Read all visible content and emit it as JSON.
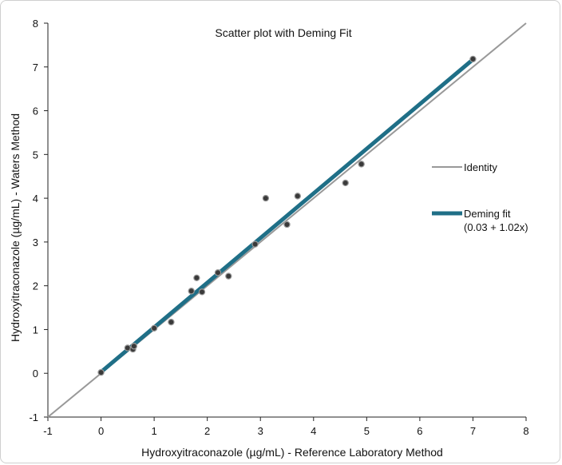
{
  "chart_data": {
    "type": "scatter",
    "title": "Scatter plot with Deming Fit",
    "xlabel": "Hydroxyitraconazole (µg/mL) - Reference Laboratory Method",
    "ylabel": "Hydroxyitraconazole (µg/mL) - Waters Method",
    "xlim": [
      -1,
      8
    ],
    "ylim": [
      -1,
      8
    ],
    "x_ticks": [
      "-1",
      "0",
      "1",
      "2",
      "3",
      "4",
      "5",
      "6",
      "7",
      "8"
    ],
    "y_ticks": [
      "-1",
      "0",
      "1",
      "2",
      "3",
      "4",
      "5",
      "6",
      "7",
      "8"
    ],
    "grid": false,
    "legend_position": "right",
    "points": [
      {
        "x": 0.0,
        "y": 0.02
      },
      {
        "x": 0.5,
        "y": 0.58
      },
      {
        "x": 0.6,
        "y": 0.55
      },
      {
        "x": 0.62,
        "y": 0.62
      },
      {
        "x": 1.0,
        "y": 1.03
      },
      {
        "x": 1.32,
        "y": 1.17
      },
      {
        "x": 1.7,
        "y": 1.88
      },
      {
        "x": 1.8,
        "y": 2.18
      },
      {
        "x": 1.9,
        "y": 1.86
      },
      {
        "x": 2.2,
        "y": 2.3
      },
      {
        "x": 2.4,
        "y": 2.22
      },
      {
        "x": 2.9,
        "y": 2.95
      },
      {
        "x": 3.1,
        "y": 4.0
      },
      {
        "x": 3.5,
        "y": 3.4
      },
      {
        "x": 3.7,
        "y": 4.05
      },
      {
        "x": 4.6,
        "y": 4.35
      },
      {
        "x": 4.9,
        "y": 4.78
      },
      {
        "x": 7.0,
        "y": 7.18
      }
    ],
    "lines": [
      {
        "name": "Identity",
        "intercept": 0,
        "slope": 1,
        "x_range": [
          -1,
          8
        ],
        "color": "#999999"
      },
      {
        "name": "Deming fit",
        "label_line2": "(0.03 + 1.02x)",
        "intercept": 0.03,
        "slope": 1.02,
        "x_range": [
          0,
          7
        ],
        "color": "#1f6f87"
      }
    ],
    "legend": {
      "identity": "Identity",
      "deming": "Deming fit",
      "deming_eq": "(0.03 + 1.02x)"
    }
  }
}
